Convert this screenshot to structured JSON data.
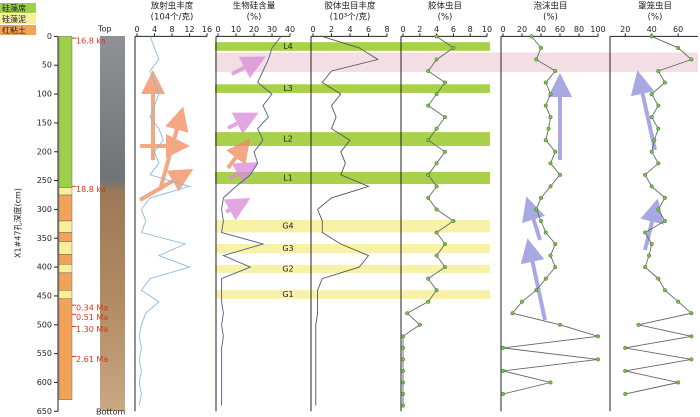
{
  "depth_axis": {
    "label": "X1#47孔深度(cm)",
    "ylim": [
      0,
      650
    ],
    "yticks": [
      0,
      50,
      100,
      150,
      200,
      250,
      300,
      350,
      400,
      450,
      500,
      550,
      600,
      650
    ],
    "depth": [
      0,
      20,
      40,
      60,
      80,
      100,
      120,
      140,
      160,
      180,
      200,
      220,
      240,
      260,
      280,
      300,
      320,
      340,
      360,
      380,
      400,
      420,
      440,
      460,
      480,
      500,
      520,
      540,
      560,
      580,
      600,
      620,
      640
    ]
  },
  "lithology": {
    "legend": [
      {
        "name": "硅藻席",
        "color": "#9ccf4a"
      },
      {
        "name": "硅藻泥",
        "color": "#f7ef9a"
      },
      {
        "name": "红粘土",
        "color": "#f2a35a"
      }
    ],
    "layers": [
      {
        "top": 0,
        "bottom": 262,
        "kind": 0
      },
      {
        "top": 262,
        "bottom": 275,
        "kind": 1
      },
      {
        "top": 275,
        "bottom": 320,
        "kind": 2
      },
      {
        "top": 320,
        "bottom": 340,
        "kind": 1
      },
      {
        "top": 340,
        "bottom": 356,
        "kind": 2
      },
      {
        "top": 356,
        "bottom": 378,
        "kind": 1
      },
      {
        "top": 378,
        "bottom": 395,
        "kind": 2
      },
      {
        "top": 395,
        "bottom": 410,
        "kind": 1
      },
      {
        "top": 410,
        "bottom": 440,
        "kind": 2
      },
      {
        "top": 440,
        "bottom": 455,
        "kind": 1
      },
      {
        "top": 455,
        "bottom": 630,
        "kind": 2
      }
    ]
  },
  "ages": [
    {
      "label": "16.8 ka",
      "depth": 3
    },
    {
      "label": "18.8 ka",
      "depth": 260
    },
    {
      "label": "0.34 Ma",
      "depth": 466
    },
    {
      "label": "0.51 Ma",
      "depth": 482
    },
    {
      "label": "1.30 Ma",
      "depth": 503
    },
    {
      "label": "2.61 Ma",
      "depth": 555
    }
  ],
  "core": {
    "top": "Top",
    "bottom": "Bottom"
  },
  "bands": [
    {
      "label": "L4",
      "top": 10,
      "bottom": 25,
      "color": "#a8d04a"
    },
    {
      "top": 28,
      "bottom": 62,
      "color": "#f3dfe3"
    },
    {
      "label": "L3",
      "top": 83,
      "bottom": 98,
      "color": "#a8d04a"
    },
    {
      "label": "L2",
      "top": 166,
      "bottom": 190,
      "color": "#a8d04a"
    },
    {
      "label": "L1",
      "top": 235,
      "bottom": 256,
      "color": "#a8d04a"
    },
    {
      "label": "G4",
      "top": 318,
      "bottom": 340,
      "color": "#f8f1a8"
    },
    {
      "label": "G3",
      "top": 360,
      "bottom": 376,
      "color": "#f8f1a8"
    },
    {
      "label": "G2",
      "top": 396,
      "bottom": 410,
      "color": "#f8f1a8"
    },
    {
      "label": "G1",
      "top": 440,
      "bottom": 455,
      "color": "#f8f1a8"
    }
  ],
  "chart_data": [
    {
      "type": "line",
      "title": "放射虫丰度",
      "unit": "(104个/克)",
      "xlim": [
        0,
        16
      ],
      "xticks": [
        0,
        4,
        8,
        12,
        16
      ],
      "color": "#8ab8e6",
      "markers": false,
      "values": [
        3,
        4,
        5,
        3,
        4,
        5,
        4,
        3,
        5,
        6,
        4,
        5,
        3,
        12,
        3,
        1,
        2,
        1,
        11,
        5,
        12,
        3,
        1,
        5,
        2,
        1,
        0.5,
        1,
        0.5,
        1,
        0.5,
        1,
        0.5
      ]
    },
    {
      "type": "line",
      "title": "生物硅含量",
      "unit": "(%)",
      "xlim": [
        0,
        40
      ],
      "xticks": [
        0,
        10,
        20,
        30,
        40
      ],
      "color": "#4d5f8c",
      "markers": false,
      "values": [
        35,
        30,
        28,
        25,
        22,
        30,
        25,
        28,
        22,
        25,
        20,
        22,
        18,
        10,
        3,
        2,
        3,
        2,
        25,
        3,
        18,
        2,
        2,
        2,
        3,
        2,
        3,
        2,
        2,
        2,
        2,
        2,
        2
      ]
    },
    {
      "type": "line",
      "title": "胶体虫目丰度",
      "unit": "(10³个/克)",
      "xlim": [
        0,
        8
      ],
      "xticks": [
        0,
        2,
        4,
        6,
        8
      ],
      "color": "#555555",
      "markers": false,
      "values": [
        1,
        5,
        7,
        2,
        1,
        3,
        2,
        2.5,
        2,
        4,
        3,
        3.5,
        3,
        6,
        2,
        0.5,
        1,
        1,
        3,
        6,
        5,
        1,
        0.5,
        0.5,
        0.5,
        0.3,
        0.3,
        0.3,
        0.3,
        0.3,
        0.3,
        0.3,
        0.3
      ]
    },
    {
      "type": "line",
      "title": "胶体虫目",
      "unit": "(%)",
      "xlim": [
        0,
        10
      ],
      "xticks": [
        0,
        2,
        4,
        6,
        8,
        10
      ],
      "color": "#666666",
      "markers": true,
      "values": [
        4,
        6,
        4,
        3,
        5,
        4,
        3,
        5,
        4,
        3,
        5,
        4,
        3,
        4,
        3,
        4,
        6,
        4,
        5,
        4,
        5,
        3,
        4,
        3,
        0.5,
        2,
        0,
        0,
        0,
        0,
        0,
        0,
        0
      ]
    },
    {
      "type": "line",
      "title": "泡沫虫目",
      "unit": "(%)",
      "xlim": [
        0,
        100
      ],
      "xticks": [
        0,
        20,
        40,
        60,
        80,
        100
      ],
      "color": "#666666",
      "markers": true,
      "values": [
        30,
        40,
        35,
        55,
        45,
        50,
        45,
        50,
        48,
        45,
        55,
        50,
        60,
        50,
        40,
        35,
        40,
        45,
        55,
        50,
        55,
        45,
        35,
        20,
        10,
        60,
        100,
        0,
        100,
        0,
        50,
        0,
        null
      ]
    },
    {
      "type": "line",
      "title": "罩笼虫目",
      "unit": "(%)",
      "xlim": [
        10,
        75
      ],
      "xticks": [
        20,
        40,
        60
      ],
      "color": "#666666",
      "markers": true,
      "values": [
        40,
        60,
        70,
        45,
        50,
        40,
        45,
        40,
        45,
        42,
        40,
        45,
        35,
        40,
        50,
        45,
        50,
        35,
        40,
        38,
        35,
        45,
        50,
        60,
        70,
        30,
        70,
        20,
        70,
        20,
        60,
        20,
        null
      ]
    }
  ]
}
